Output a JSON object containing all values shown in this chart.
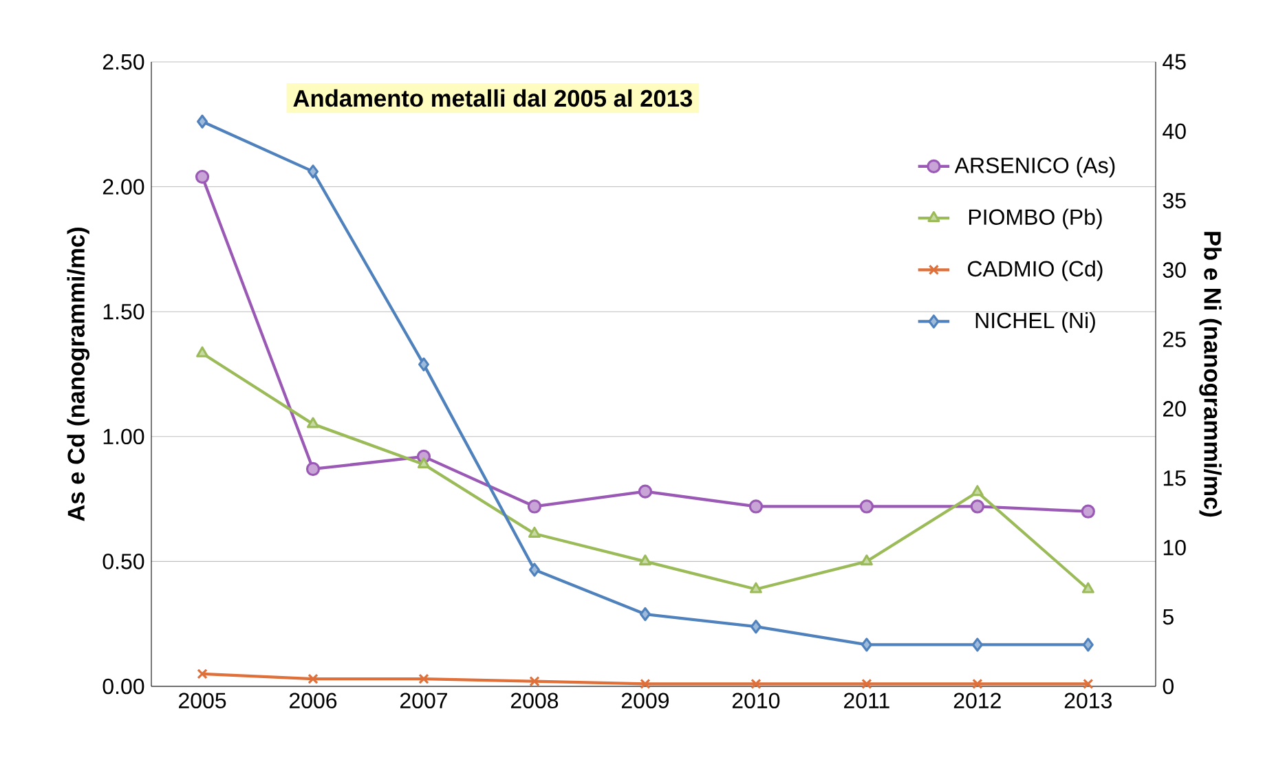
{
  "chart_data": {
    "type": "line",
    "title": "Andamento metalli dal 2005 al 2013",
    "ylabel": "As e Cd (nanogrammi/mc)",
    "y2label": "Pb e Ni (nanogrammi/mc)",
    "categories": [
      "2005",
      "2006",
      "2007",
      "2008",
      "2009",
      "2010",
      "2011",
      "2012",
      "2013"
    ],
    "series": [
      {
        "name": "ARSENICO (As)",
        "color": "#9b59b6",
        "marker": "circle",
        "values": [
          2.04,
          0.87,
          0.92,
          0.72,
          0.78,
          0.72,
          0.72,
          0.72,
          0.7
        ]
      },
      {
        "name": "PIOMBO (Pb)",
        "color": "#9bbb59",
        "marker": "triangle",
        "axis": "y2",
        "values": [
          24.0,
          18.9,
          16.0,
          11.0,
          9.0,
          7.0,
          9.0,
          14.0,
          7.0
        ]
      },
      {
        "name": "CADMIO (Cd)",
        "color": "#e0703a",
        "marker": "cross",
        "values": [
          0.05,
          0.03,
          0.03,
          0.02,
          0.01,
          0.01,
          0.01,
          0.01,
          0.01
        ]
      },
      {
        "name": "NICHEL (Ni)",
        "color": "#4f81bd",
        "marker": "diamond",
        "axis": "y2",
        "values": [
          40.7,
          37.1,
          23.2,
          8.4,
          5.2,
          4.3,
          3.0,
          3.0,
          3.0
        ]
      }
    ],
    "ylim": [
      0,
      2.5
    ],
    "yticks": [
      {
        "value": 0,
        "label": "0.00"
      },
      {
        "value": 0.5,
        "label": "0.50"
      },
      {
        "value": 1,
        "label": "1.00"
      },
      {
        "value": 1.5,
        "label": "1.50"
      },
      {
        "value": 2,
        "label": "2.00"
      },
      {
        "value": 2.5,
        "label": "2.50"
      }
    ],
    "y2lim": [
      0,
      45
    ],
    "y2ticks": [
      0,
      5,
      10,
      15,
      20,
      25,
      30,
      35,
      40,
      45
    ],
    "grid": "y",
    "legend": "top right",
    "line_style": "solid"
  }
}
